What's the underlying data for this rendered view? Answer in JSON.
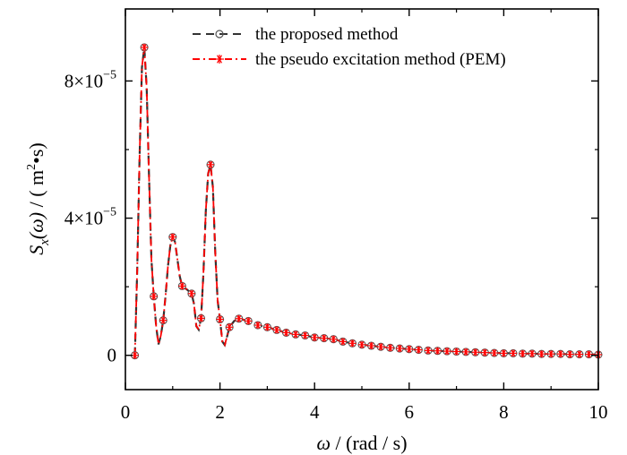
{
  "chart_data": {
    "type": "line",
    "xlabel_parts": {
      "var": "ω",
      "unit": " / (rad / s)"
    },
    "ylabel_parts": {
      "fn": "S",
      "sub": "x",
      "arg": "(ω)",
      "unit_pre": " / ( m",
      "unit_sup": "2",
      "unit_post": "•s)"
    },
    "xlim": [
      0,
      10
    ],
    "ylim": [
      -1e-05,
      0.000101
    ],
    "x_ticks": [
      0,
      2,
      4,
      6,
      8,
      10
    ],
    "x_tick_labels": [
      "0",
      "2",
      "4",
      "6",
      "8",
      "10"
    ],
    "y_ticks": [
      0,
      4e-05,
      8e-05
    ],
    "y_tick_labels": [
      {
        "mant": "0",
        "exp": ""
      },
      {
        "mant": "4×10",
        "exp": "−5"
      },
      {
        "mant": "8×10",
        "exp": "−5"
      }
    ],
    "legend_position": "top-right",
    "series": [
      {
        "name": "the proposed method",
        "color": "#333333",
        "line_style": "dashed",
        "marker": "circle"
      },
      {
        "name": "the pseudo excitation method (PEM)",
        "color": "#ff0000",
        "line_style": "dash-dot",
        "marker": "asterisk"
      }
    ],
    "x": [
      0.2,
      0.4,
      0.6,
      0.8,
      1.0,
      1.2,
      1.4,
      1.6,
      1.8,
      2.0,
      2.2,
      2.4,
      2.6,
      2.8,
      3.0,
      3.2,
      3.4,
      3.6,
      3.8,
      4.0,
      4.2,
      4.4,
      4.6,
      4.8,
      5.0,
      5.2,
      5.4,
      5.6,
      5.8,
      6.0,
      6.2,
      6.4,
      6.6,
      6.8,
      7.0,
      7.2,
      7.4,
      7.6,
      7.8,
      8.0,
      8.2,
      8.4,
      8.6,
      8.8,
      9.0,
      9.2,
      9.4,
      9.6,
      9.8,
      10.0
    ],
    "values": [
      0.0,
      8.98e-05,
      1.72e-05,
      1.02e-05,
      3.45e-05,
      2.02e-05,
      1.8e-05,
      1.08e-05,
      5.56e-05,
      1.05e-05,
      8.2e-06,
      1.07e-05,
      1e-05,
      8.8e-06,
      8.2e-06,
      7.4e-06,
      6.6e-06,
      6.1e-06,
      5.8e-06,
      5.2e-06,
      5e-06,
      4.7e-06,
      4e-06,
      3.5e-06,
      3.1e-06,
      2.8e-06,
      2.5e-06,
      2.2e-06,
      2e-06,
      1.8e-06,
      1.6e-06,
      1.4e-06,
      1.3e-06,
      1.2e-06,
      1.1e-06,
      1e-06,
      9e-07,
      8e-07,
      7e-07,
      6e-07,
      6e-07,
      5e-07,
      5e-07,
      4e-07,
      4e-07,
      4e-07,
      3e-07,
      3e-07,
      3e-07,
      2e-07
    ],
    "curve_dense": [
      [
        0.2,
        0.0
      ],
      [
        0.25,
        2.5e-05
      ],
      [
        0.3,
        5.8e-05
      ],
      [
        0.35,
        8.4e-05
      ],
      [
        0.4,
        8.98e-05
      ],
      [
        0.45,
        7.8e-05
      ],
      [
        0.5,
        5.2e-05
      ],
      [
        0.55,
        2.8e-05
      ],
      [
        0.6,
        1.72e-05
      ],
      [
        0.65,
        8.5e-06
      ],
      [
        0.7,
        3.2e-06
      ],
      [
        0.75,
        5.8e-06
      ],
      [
        0.8,
        1.02e-05
      ],
      [
        0.85,
        1.75e-05
      ],
      [
        0.9,
        2.6e-05
      ],
      [
        0.95,
        3.2e-05
      ],
      [
        1.0,
        3.45e-05
      ],
      [
        1.05,
        3.3e-05
      ],
      [
        1.1,
        2.8e-05
      ],
      [
        1.15,
        2.3e-05
      ],
      [
        1.2,
        2.02e-05
      ],
      [
        1.3,
        1.92e-05
      ],
      [
        1.4,
        1.8e-05
      ],
      [
        1.45,
        1.5e-05
      ],
      [
        1.5,
        8.5e-06
      ],
      [
        1.55,
        7.5e-06
      ],
      [
        1.6,
        1.08e-05
      ],
      [
        1.65,
        2.4e-05
      ],
      [
        1.7,
        4.2e-05
      ],
      [
        1.75,
        5.3e-05
      ],
      [
        1.8,
        5.56e-05
      ],
      [
        1.85,
        4.9e-05
      ],
      [
        1.9,
        3e-05
      ],
      [
        1.95,
        1.6e-05
      ],
      [
        2.0,
        1.05e-05
      ],
      [
        2.05,
        4e-06
      ],
      [
        2.1,
        3e-06
      ],
      [
        2.15,
        5.5e-06
      ],
      [
        2.2,
        8.2e-06
      ],
      [
        2.3,
        1e-05
      ],
      [
        2.4,
        1.07e-05
      ],
      [
        2.6,
        1e-05
      ]
    ]
  }
}
